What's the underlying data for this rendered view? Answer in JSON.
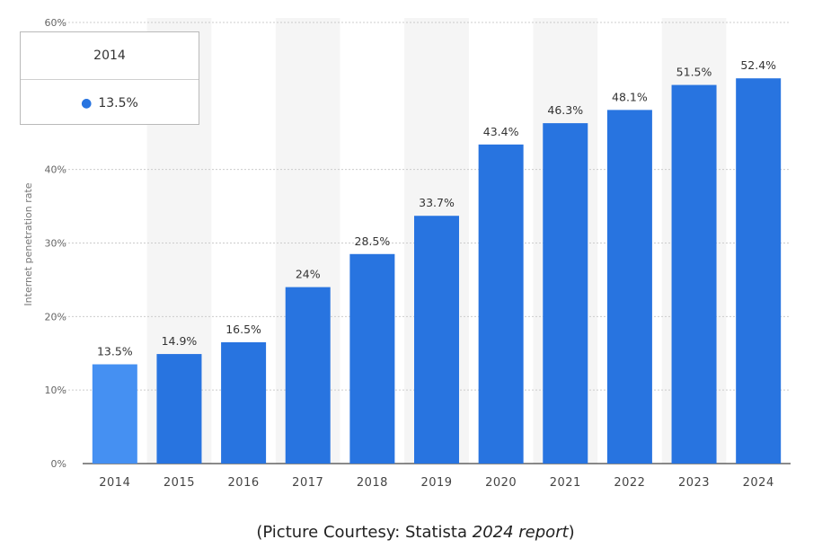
{
  "chart_data": {
    "type": "bar",
    "categories": [
      "2014",
      "2015",
      "2016",
      "2017",
      "2018",
      "2019",
      "2020",
      "2021",
      "2022",
      "2023",
      "2024"
    ],
    "values": [
      13.5,
      14.9,
      16.5,
      24,
      28.5,
      33.7,
      43.4,
      46.3,
      48.1,
      51.5,
      52.4
    ],
    "value_labels": [
      "13.5%",
      "14.9%",
      "16.5%",
      "24%",
      "28.5%",
      "33.7%",
      "43.4%",
      "46.3%",
      "48.1%",
      "51.5%",
      "52.4%"
    ],
    "ylabel": "Internet penetration rate",
    "ylim": [
      0,
      60
    ],
    "yticks": [
      "0%",
      "10%",
      "20%",
      "30%",
      "40%",
      "60%"
    ],
    "ytick_values": [
      0,
      10,
      20,
      30,
      40,
      60
    ],
    "grid": true,
    "colors": {
      "bar": "#2874e0",
      "highlight": "#4590f2",
      "band": "#f5f5f5",
      "grid": "#cccccc"
    },
    "highlighted_category": "2014"
  },
  "tooltip": {
    "title": "2014",
    "value": "13.5%"
  },
  "caption": {
    "prefix": "(Picture Courtesy: Statista ",
    "italic": "2024 report",
    "suffix": ")"
  }
}
